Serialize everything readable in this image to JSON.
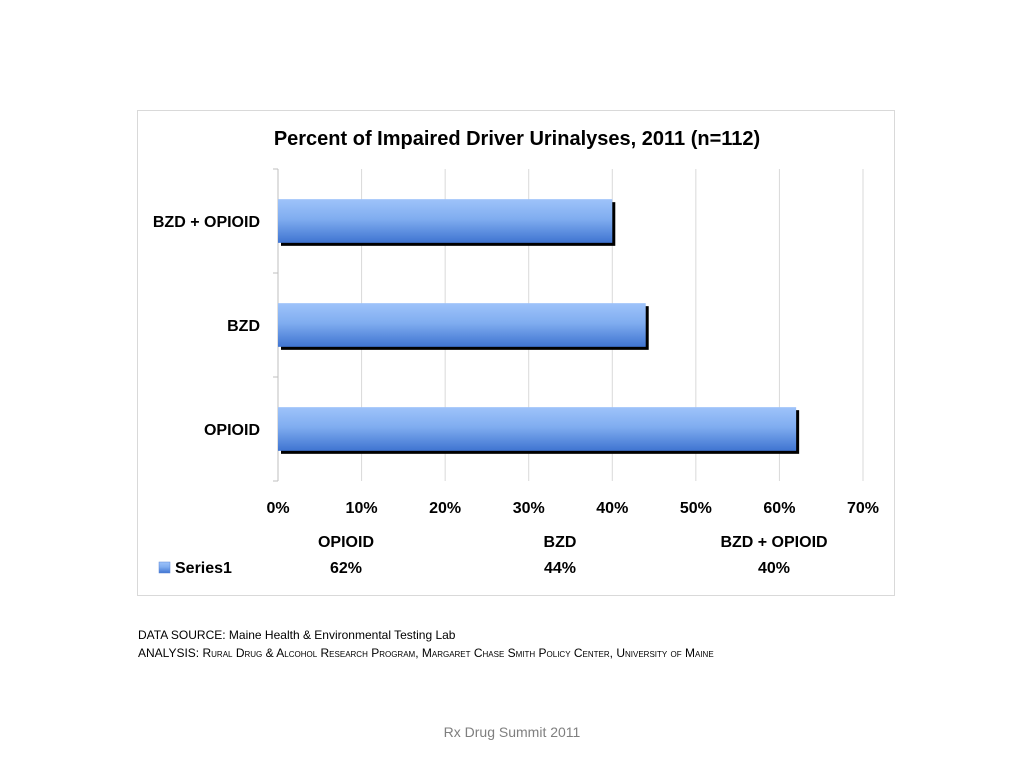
{
  "chart_data": {
    "type": "bar",
    "orientation": "horizontal",
    "title": "Percent of Impaired Driver Urinalyses, 2011 (n=112)",
    "categories": [
      "OPIOID",
      "BZD",
      "BZD + OPIOID"
    ],
    "series": [
      {
        "name": "Series1",
        "values": [
          62,
          44,
          40
        ],
        "value_labels": [
          "62%",
          "44%",
          "40%"
        ]
      }
    ],
    "xlim": [
      0,
      70
    ],
    "x_ticks": [
      0,
      10,
      20,
      30,
      40,
      50,
      60,
      70
    ],
    "x_tick_labels": [
      "0%",
      "10%",
      "20%",
      "30%",
      "40%",
      "50%",
      "60%",
      "70%"
    ],
    "xlabel": "",
    "ylabel": "",
    "grid": true,
    "data_table": true,
    "bar_color": "#6e9ee8"
  },
  "notes": {
    "source_prefix": "DATA SOURCE: ",
    "source_text": "Maine Health & Environmental Testing Lab",
    "analysis_prefix": "ANALYSIS: ",
    "analysis_text": "Rural Drug & Alcohol Research Program, Margaret Chase Smith Policy Center, University of Maine"
  },
  "footer": {
    "text": "Rx Drug Summit 2011"
  }
}
